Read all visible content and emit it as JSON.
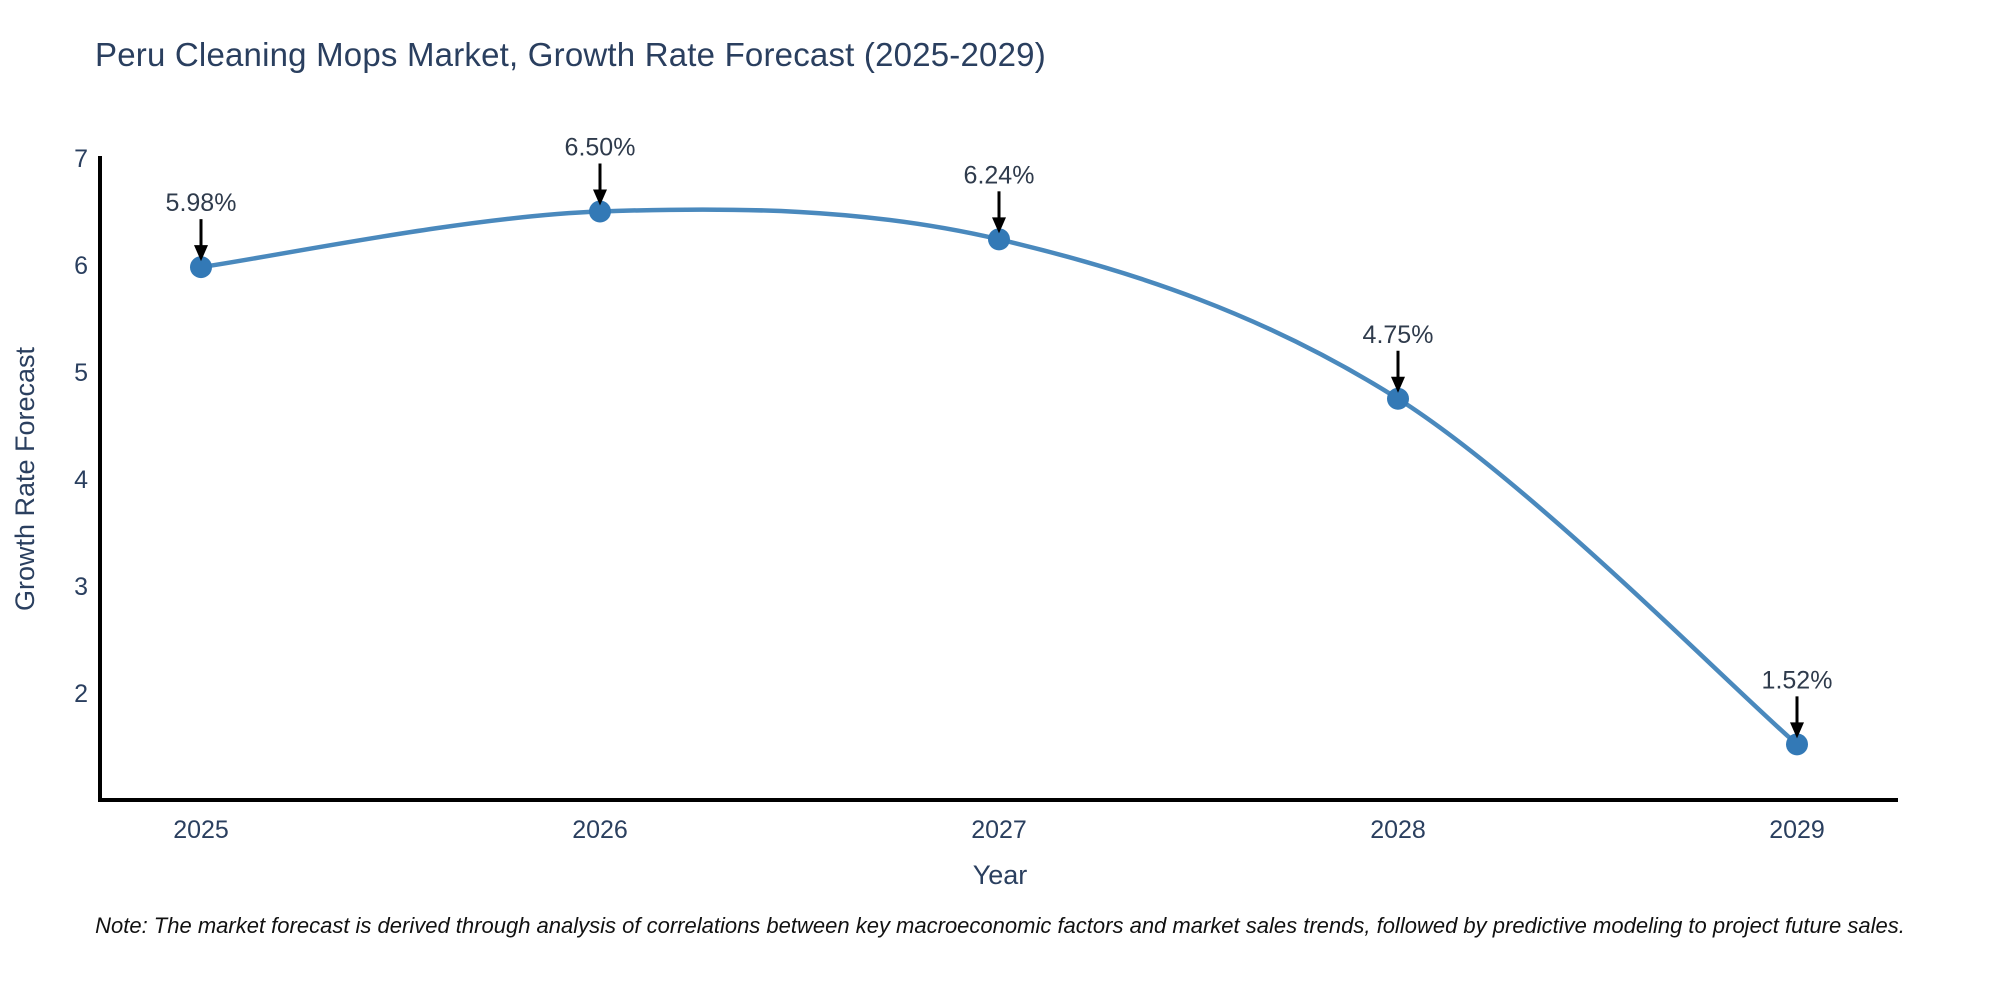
{
  "chart_data": {
    "type": "line",
    "title": "Peru Cleaning Mops Market, Growth Rate Forecast (2025-2029)",
    "categories": [
      "2025",
      "2026",
      "2027",
      "2028",
      "2029"
    ],
    "x": [
      2025,
      2026,
      2027,
      2028,
      2029
    ],
    "values": [
      5.98,
      6.5,
      6.24,
      4.75,
      1.52
    ],
    "point_labels": [
      "5.98%",
      "6.50%",
      "6.24%",
      "4.75%",
      "1.52%"
    ],
    "xlabel": "Year",
    "ylabel": "Growth Rate Forecast",
    "ylim": [
      1.0,
      7.0
    ],
    "yticks": [
      2,
      3,
      4,
      5,
      6,
      7
    ],
    "grid": false,
    "legend_position": "none",
    "line_color": "#4a89bd",
    "marker_color": "#3379b6",
    "axis_line_color": "#000000",
    "arrow_color": "#000000",
    "label_color": "#2f3b4c",
    "tick_color": "#2a3f5f",
    "title_color": "#2a3f5f"
  },
  "note": {
    "text": "Note: The market forecast is derived through analysis of correlations between key macroeconomic factors and market sales trends, followed by predictive modeling to project future sales."
  }
}
